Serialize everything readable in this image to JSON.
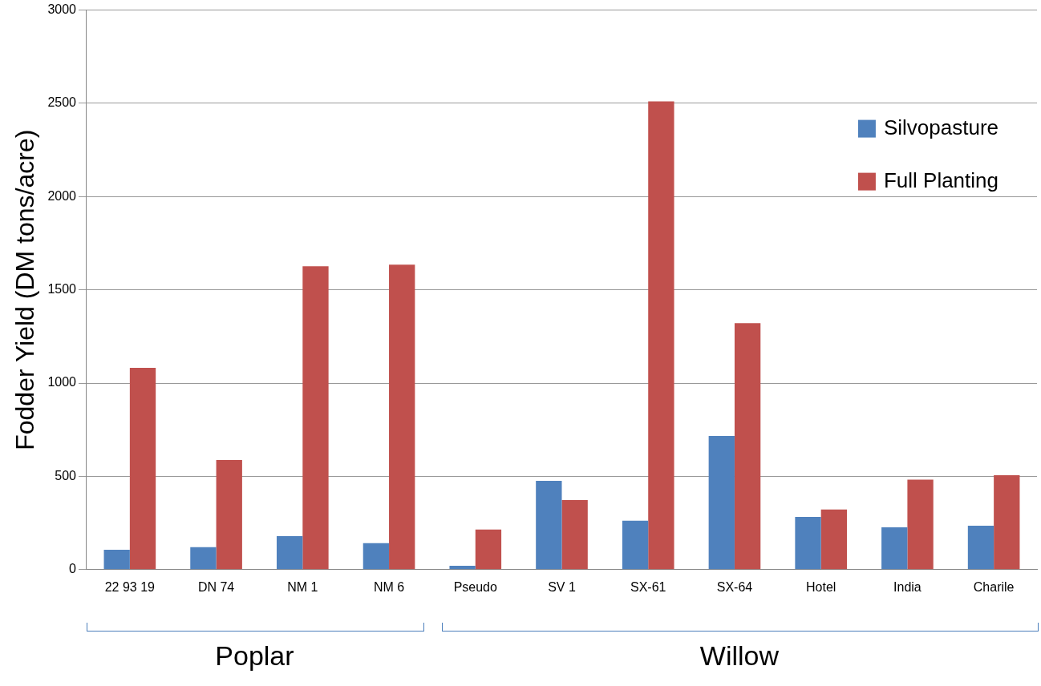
{
  "chart_data": {
    "type": "bar",
    "ylabel": "Fodder Yield (DM tons/acre)",
    "categories": [
      "22 93 19",
      "DN 74",
      "NM 1",
      "NM 6",
      "Pseudo",
      "SV 1",
      "SX-61",
      "SX-64",
      "Hotel",
      "India",
      "Charile"
    ],
    "series": [
      {
        "name": "Silvopasture",
        "color": "#4f81bd",
        "values": [
          107,
          120,
          180,
          142,
          21,
          476,
          262,
          717,
          283,
          227,
          236
        ]
      },
      {
        "name": "Full Planting",
        "color": "#c0504d",
        "values": [
          1082,
          588,
          1627,
          1635,
          215,
          373,
          2511,
          1322,
          322,
          483,
          506
        ]
      }
    ],
    "ylim": [
      0,
      3000
    ],
    "yticks": [
      0,
      500,
      1000,
      1500,
      2000,
      2500,
      3000
    ],
    "grid": "y",
    "legend": "top right",
    "annotations": [
      "Poplar",
      "Willow"
    ]
  }
}
